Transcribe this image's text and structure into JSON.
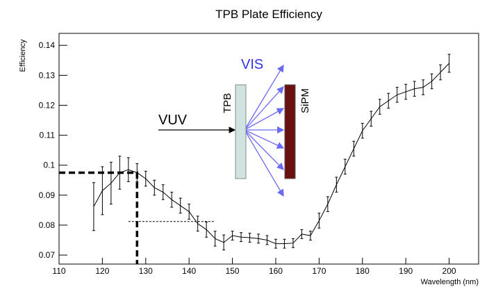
{
  "chart_data": {
    "type": "line",
    "title": "TPB Plate Efficiency",
    "x_label": "Wavelength (nm)",
    "y_label": "Efficiency",
    "x": [
      118,
      120,
      122,
      124,
      126,
      128,
      130,
      132,
      134,
      136,
      138,
      140,
      142,
      144,
      146,
      148,
      150,
      152,
      154,
      156,
      158,
      160,
      162,
      164,
      166,
      168,
      170,
      172,
      174,
      176,
      178,
      180,
      182,
      184,
      186,
      188,
      190,
      192,
      194,
      196,
      198,
      200
    ],
    "values": [
      0.0862,
      0.0915,
      0.094,
      0.0975,
      0.0985,
      0.0975,
      0.0955,
      0.0925,
      0.091,
      0.0885,
      0.0865,
      0.0845,
      0.0805,
      0.0785,
      0.0755,
      0.0742,
      0.0765,
      0.076,
      0.0758,
      0.0755,
      0.075,
      0.0738,
      0.0738,
      0.074,
      0.077,
      0.0765,
      0.0815,
      0.087,
      0.0935,
      0.0995,
      0.1055,
      0.1115,
      0.1155,
      0.1195,
      0.1215,
      0.1235,
      0.1245,
      0.1255,
      0.126,
      0.128,
      0.131,
      0.134
    ],
    "errors": [
      0.008,
      0.008,
      0.007,
      0.0055,
      0.004,
      0.003,
      0.0025,
      0.0025,
      0.0025,
      0.0025,
      0.0025,
      0.0025,
      0.0025,
      0.0025,
      0.0025,
      0.0025,
      0.0015,
      0.0015,
      0.0015,
      0.0015,
      0.0015,
      0.0015,
      0.0015,
      0.0015,
      0.0015,
      0.0015,
      0.0025,
      0.0025,
      0.0025,
      0.0025,
      0.0025,
      0.0025,
      0.0025,
      0.0025,
      0.0025,
      0.0025,
      0.0025,
      0.0025,
      0.0025,
      0.0025,
      0.0025,
      0.003
    ],
    "color": "#000000",
    "xlim": [
      110,
      206.8
    ],
    "ylim": [
      0.067,
      0.144
    ],
    "xticks": [
      110,
      120,
      130,
      140,
      150,
      160,
      170,
      180,
      190,
      200
    ],
    "yticks": [
      0.07,
      0.08,
      0.09,
      0.1,
      0.11,
      0.12,
      0.13,
      0.14
    ],
    "peak": {
      "x": 128,
      "y": 0.0975
    },
    "half_line": {
      "x": [
        126,
        146
      ],
      "y": 0.0812
    },
    "inset_labels": {
      "vis": "VIS",
      "vuv": "VUV",
      "tpb": "TPB",
      "sipm": "SiPM"
    }
  }
}
